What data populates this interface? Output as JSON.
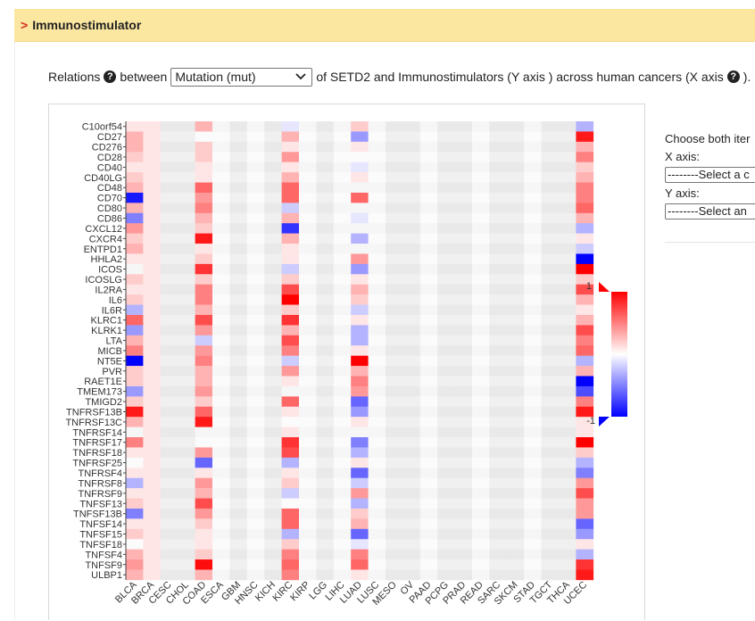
{
  "header": {
    "arrow": ">",
    "title": "Immunostimulator"
  },
  "relations": {
    "prefix": "Relations",
    "between": "between",
    "select_value": "Mutation (mut)",
    "suffix": "of SETD2 and Immunostimulators (Y axis ) across human cancers (X axis",
    "end": ")."
  },
  "side_panel": {
    "prompt": "Choose both iter",
    "x_label": "X axis:",
    "x_select": "--------Select a c",
    "y_label": "Y axis:",
    "y_select": "--------Select an"
  },
  "chart_data": {
    "type": "heatmap",
    "colorbar": {
      "min": -1,
      "max": 1,
      "min_label": "-1",
      "max_label": "1",
      "colors": [
        "#0000ff",
        "#ffffff",
        "#ff0000"
      ]
    },
    "x": [
      "BLCA",
      "BRCA",
      "CESC",
      "CHOL",
      "COAD",
      "ESCA",
      "GBM",
      "HNSC",
      "KICH",
      "KIRC",
      "KIRP",
      "LGG",
      "LIHC",
      "LUAD",
      "LUSC",
      "MESO",
      "OV",
      "PAAD",
      "PCPG",
      "PRAD",
      "READ",
      "SARC",
      "SKCM",
      "STAD",
      "TGCT",
      "THCA",
      "UCEC"
    ],
    "y": [
      "C10orf54",
      "CD27",
      "CD276",
      "CD28",
      "CD40",
      "CD40LG",
      "CD48",
      "CD70",
      "CD80",
      "CD86",
      "CXCL12",
      "CXCR4",
      "ENTPD1",
      "HHLA2",
      "ICOS",
      "ICOSLG",
      "IL2RA",
      "IL6",
      "IL6R",
      "KLRC1",
      "KLRK1",
      "LTA",
      "MICB",
      "NT5E",
      "PVR",
      "RAET1E",
      "TMEM173",
      "TMIGD2",
      "TNFRSF13B",
      "TNFRSF13C",
      "TNFRSF14",
      "TNFRSF17",
      "TNFRSF18",
      "TNFRSF25",
      "TNFRSF4",
      "TNFRSF8",
      "TNFRSF9",
      "TNFSF13",
      "TNFSF13B",
      "TNFSF14",
      "TNFSF15",
      "TNFSF18",
      "TNFSF4",
      "TNFSF9",
      "ULBP1"
    ],
    "na_columns": [
      "CESC",
      "CHOL",
      "GBM",
      "KICH",
      "LGG",
      "MESO",
      "OV",
      "PCPG",
      "PRAD",
      "SARC",
      "SKCM",
      "TGCT",
      "THCA"
    ],
    "values": {
      "BLCA": [
        0.1,
        0.3,
        0.3,
        0.2,
        0.1,
        0.2,
        0.3,
        -0.9,
        0.3,
        -0.5,
        0.4,
        0.2,
        0.3,
        0.1,
        0.0,
        0.2,
        0.1,
        0.2,
        -0.3,
        0.6,
        -0.4,
        0.3,
        0.5,
        -1.0,
        0.2,
        0.2,
        -0.4,
        0.2,
        0.9,
        0.3,
        0.0,
        0.5,
        0.1,
        0.0,
        0.1,
        -0.3,
        0.1,
        0.2,
        -0.5,
        0.1,
        0.2,
        0.0,
        0.3,
        0.4,
        0.3
      ],
      "BRCA": [
        0.1,
        0.1,
        0.1,
        0.1,
        0.1,
        0.1,
        0.1,
        0.1,
        0.1,
        0.1,
        0.1,
        0.1,
        0.1,
        0.1,
        0.1,
        0.1,
        0.1,
        0.1,
        0.1,
        0.1,
        0.1,
        0.1,
        0.1,
        0.1,
        0.1,
        0.1,
        0.1,
        0.1,
        0.1,
        0.1,
        0.1,
        0.1,
        0.1,
        0.1,
        0.1,
        0.1,
        0.1,
        0.1,
        0.1,
        0.1,
        0.1,
        0.1,
        0.1,
        0.1,
        0.1
      ],
      "COAD": [
        0.3,
        0.0,
        0.2,
        0.2,
        0.1,
        0.1,
        0.6,
        0.4,
        0.5,
        0.3,
        0.2,
        0.9,
        0.1,
        0.2,
        0.8,
        0.2,
        0.5,
        0.5,
        0.3,
        0.7,
        0.4,
        -0.2,
        0.4,
        0.5,
        0.3,
        0.3,
        0.4,
        0.2,
        0.6,
        0.9,
        0.0,
        0.0,
        0.4,
        -0.6,
        0.1,
        0.4,
        0.3,
        0.7,
        0.4,
        0.2,
        0.1,
        0.1,
        0.2,
        0.95,
        0.3
      ],
      "ESCA": [
        0.0,
        0.0,
        0.0,
        0.0,
        0.0,
        0.0,
        0.0,
        0.0,
        0.0,
        0.0,
        0.0,
        0.0,
        0.0,
        0.0,
        0.0,
        0.0,
        0.0,
        0.0,
        0.0,
        0.0,
        0.0,
        0.0,
        0.0,
        0.0,
        0.0,
        0.0,
        0.0,
        0.0,
        0.0,
        0.0,
        0.0,
        0.0,
        0.0,
        0.0,
        0.0,
        0.0,
        0.0,
        0.0,
        0.0,
        0.0,
        0.0,
        0.0,
        0.0,
        0.0,
        0.0
      ],
      "HNSC": [
        0.0,
        0.0,
        0.0,
        0.0,
        0.0,
        0.0,
        0.0,
        0.0,
        0.0,
        0.0,
        0.0,
        0.0,
        0.0,
        0.0,
        0.0,
        0.0,
        0.0,
        0.0,
        0.0,
        0.0,
        0.0,
        0.0,
        0.0,
        0.0,
        0.0,
        0.0,
        0.0,
        0.0,
        0.0,
        0.0,
        0.0,
        0.0,
        0.0,
        0.0,
        0.0,
        0.0,
        0.0,
        0.0,
        0.0,
        0.0,
        0.0,
        0.0,
        0.0,
        0.0,
        0.0
      ],
      "KIRC": [
        -0.1,
        0.3,
        0.1,
        0.4,
        0.1,
        0.3,
        0.6,
        0.6,
        -0.2,
        0.3,
        -0.8,
        0.3,
        0.1,
        0.1,
        -0.2,
        0.2,
        0.7,
        1.0,
        0.2,
        0.8,
        0.3,
        0.7,
        0.5,
        -0.2,
        0.4,
        0.1,
        0.0,
        0.6,
        0.1,
        0.0,
        0.1,
        0.8,
        0.7,
        -0.3,
        0.1,
        0.2,
        -0.2,
        0.0,
        0.6,
        0.6,
        -0.3,
        0.2,
        0.5,
        0.6,
        0.5
      ],
      "KIRP": [
        0.0,
        0.0,
        0.0,
        0.0,
        0.0,
        0.0,
        0.0,
        0.0,
        0.0,
        0.0,
        0.0,
        0.0,
        0.0,
        0.0,
        0.0,
        0.0,
        0.0,
        0.0,
        0.0,
        0.0,
        0.0,
        0.0,
        0.0,
        0.0,
        0.0,
        0.0,
        0.0,
        0.0,
        0.0,
        0.0,
        0.0,
        0.0,
        0.0,
        0.0,
        0.0,
        0.0,
        0.0,
        0.0,
        0.0,
        0.0,
        0.0,
        0.0,
        0.0,
        0.0,
        0.0
      ],
      "LIHC": [
        0.0,
        0.0,
        0.0,
        0.0,
        0.0,
        0.0,
        0.0,
        0.0,
        0.0,
        0.0,
        0.0,
        0.0,
        0.0,
        0.0,
        0.0,
        0.0,
        0.0,
        0.0,
        0.0,
        0.0,
        0.0,
        0.0,
        0.0,
        0.0,
        0.0,
        0.0,
        0.0,
        0.0,
        0.0,
        0.0,
        0.0,
        0.0,
        0.0,
        0.0,
        0.0,
        0.0,
        0.0,
        0.0,
        0.0,
        0.0,
        0.0,
        0.0,
        0.0,
        0.0,
        0.0
      ],
      "LUAD": [
        0.2,
        -0.4,
        0.1,
        0.0,
        -0.1,
        0.1,
        0.0,
        0.6,
        0.0,
        -0.1,
        0.0,
        -0.3,
        0.0,
        0.4,
        -0.4,
        0.1,
        0.3,
        0.2,
        -0.2,
        0.1,
        -0.3,
        -0.3,
        0.1,
        1.0,
        0.3,
        0.5,
        0.4,
        -0.6,
        -0.4,
        0.1,
        0.0,
        -0.5,
        -0.3,
        0.1,
        -0.6,
        -0.2,
        0.4,
        -0.3,
        0.2,
        0.3,
        -0.6,
        -0.1,
        0.5,
        0.6,
        0.1
      ],
      "LUSC": [
        0.0,
        0.0,
        0.0,
        0.0,
        0.0,
        0.0,
        0.0,
        0.0,
        0.0,
        0.0,
        0.0,
        0.0,
        0.0,
        0.0,
        0.0,
        0.0,
        0.0,
        0.0,
        0.0,
        0.0,
        0.0,
        0.0,
        0.0,
        0.0,
        0.0,
        0.0,
        0.0,
        0.0,
        0.0,
        0.0,
        0.0,
        0.0,
        0.0,
        0.0,
        0.0,
        0.0,
        0.0,
        0.0,
        0.0,
        0.0,
        0.0,
        0.0,
        0.0,
        0.0,
        0.0
      ],
      "PAAD": [
        0.0,
        0.0,
        0.0,
        0.0,
        0.0,
        0.0,
        0.0,
        0.0,
        0.0,
        0.0,
        0.0,
        0.0,
        0.0,
        0.0,
        0.0,
        0.0,
        0.0,
        0.0,
        0.0,
        0.0,
        0.0,
        0.0,
        0.0,
        0.0,
        0.0,
        0.0,
        0.0,
        0.0,
        0.0,
        0.0,
        0.0,
        0.0,
        0.0,
        0.0,
        0.0,
        0.0,
        0.0,
        0.0,
        0.0,
        0.0,
        0.0,
        0.0,
        0.0,
        0.0,
        0.0
      ],
      "READ": [
        0.0,
        0.0,
        0.0,
        0.0,
        0.0,
        0.0,
        0.0,
        0.0,
        0.0,
        0.0,
        0.0,
        0.0,
        0.0,
        0.0,
        0.0,
        0.0,
        0.0,
        0.0,
        0.0,
        0.0,
        0.0,
        0.0,
        0.0,
        0.0,
        0.0,
        0.0,
        0.0,
        0.0,
        0.0,
        0.0,
        0.0,
        0.0,
        0.0,
        0.0,
        0.0,
        0.0,
        0.0,
        0.0,
        0.0,
        0.0,
        0.0,
        0.0,
        0.0,
        0.0,
        0.0
      ],
      "STAD": [
        0.0,
        0.0,
        0.0,
        0.0,
        0.0,
        0.0,
        0.0,
        0.0,
        0.0,
        0.0,
        0.0,
        0.0,
        0.0,
        0.0,
        0.0,
        0.0,
        0.0,
        0.0,
        0.0,
        0.0,
        0.0,
        0.0,
        0.0,
        0.0,
        0.0,
        0.0,
        0.0,
        0.0,
        0.0,
        0.0,
        0.0,
        0.0,
        0.0,
        0.0,
        0.0,
        0.0,
        0.0,
        0.0,
        0.0,
        0.0,
        0.0,
        0.0,
        0.0,
        0.0,
        0.0
      ],
      "UCEC": [
        -0.3,
        0.9,
        0.3,
        0.5,
        0.2,
        0.3,
        0.5,
        0.5,
        0.6,
        0.3,
        -0.3,
        0.1,
        -0.2,
        -1.0,
        1.0,
        0.2,
        0.7,
        0.3,
        0.1,
        0.3,
        0.7,
        0.5,
        0.6,
        -0.3,
        0.3,
        -1.0,
        -0.7,
        0.5,
        0.9,
        0.1,
        0.1,
        1.0,
        0.2,
        -0.3,
        -0.5,
        0.4,
        0.7,
        0.4,
        0.4,
        -0.6,
        -0.4,
        0.1,
        -0.3,
        0.8,
        0.9
      ]
    }
  }
}
